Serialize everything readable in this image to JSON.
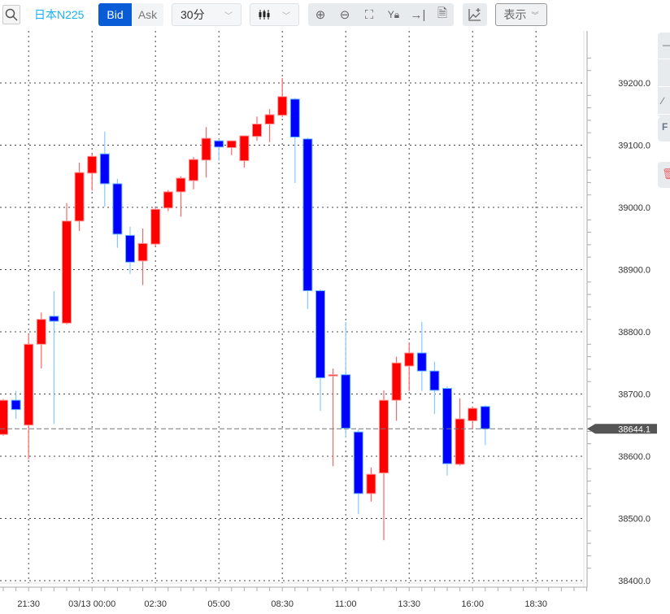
{
  "toolbar": {
    "search_icon": "search-icon",
    "symbol": "日本N225",
    "bid_label": "Bid",
    "ask_label": "Ask",
    "interval": "30分",
    "chart_type_icon": "candlestick-icon",
    "tools": [
      "zoom-in-icon",
      "zoom-out-icon",
      "fit-icon",
      "y-lock-icon",
      "scroll-to-end-icon",
      "document-icon"
    ],
    "indicator_icon": "add-indicator-icon",
    "display_label": "表示",
    "accent": "#0a5bd6",
    "symbol_color": "#1ab0f0"
  },
  "side_panel": {
    "f_label": "F",
    "trash_icon": "trash-icon"
  },
  "chart_data": {
    "type": "candlestick",
    "up_color": "#ff0000",
    "down_color": "#0000ff",
    "ylim": [
      38400,
      39250
    ],
    "y_ticks": [
      "39200.0",
      "39100.0",
      "39000.0",
      "38900.0",
      "38800.0",
      "38700.0",
      "38600.0",
      "38500.0",
      "38400.0"
    ],
    "x_ticks": [
      {
        "i": 2,
        "label": "21:30"
      },
      {
        "i": 7,
        "label": "03/13 00:00"
      },
      {
        "i": 12,
        "label": "02:30"
      },
      {
        "i": 17,
        "label": "05:00"
      },
      {
        "i": 22,
        "label": "08:30"
      },
      {
        "i": 27,
        "label": "11:00"
      },
      {
        "i": 32,
        "label": "13:30"
      },
      {
        "i": 37,
        "label": "16:00"
      },
      {
        "i": 42,
        "label": "18:30"
      }
    ],
    "grid": true,
    "current_price": "38644.1",
    "candles": [
      [
        38635,
        38692,
        38633,
        38690
      ],
      [
        38690,
        38705,
        38660,
        38675
      ],
      [
        38650,
        38796,
        38595,
        38780
      ],
      [
        38780,
        38831,
        38741,
        38820
      ],
      [
        38825,
        38865,
        38652,
        38817
      ],
      [
        38814,
        39007,
        38812,
        38978
      ],
      [
        38978,
        39072,
        38962,
        39056
      ],
      [
        39055,
        39085,
        39027,
        39082
      ],
      [
        39086,
        39122,
        39001,
        39038
      ],
      [
        39038,
        39046,
        38935,
        38957
      ],
      [
        38955,
        38969,
        38893,
        38912
      ],
      [
        38914,
        38966,
        38875,
        38942
      ],
      [
        38941,
        39000,
        38937,
        38997
      ],
      [
        38999,
        39028,
        38994,
        39025
      ],
      [
        39025,
        39050,
        38985,
        39047
      ],
      [
        39043,
        39081,
        39029,
        39077
      ],
      [
        39076,
        39129,
        39048,
        39111
      ],
      [
        39107,
        39110,
        39075,
        39097
      ],
      [
        39096,
        39107,
        39084,
        39107
      ],
      [
        39075,
        39115,
        39064,
        39115
      ],
      [
        39114,
        39146,
        39107,
        39134
      ],
      [
        39134,
        39158,
        39105,
        39149
      ],
      [
        39148,
        39208,
        39145,
        39178
      ],
      [
        39174,
        39176,
        39039,
        39113
      ],
      [
        39110,
        39112,
        38837,
        38866
      ],
      [
        38866,
        38868,
        38673,
        38726
      ],
      [
        38731,
        38741,
        38584,
        38731
      ],
      [
        38731,
        38816,
        38630,
        38645
      ],
      [
        38639,
        38643,
        38507,
        38540
      ],
      [
        38540,
        38582,
        38527,
        38571
      ],
      [
        38573,
        38706,
        38465,
        38690
      ],
      [
        38690,
        38760,
        38657,
        38750
      ],
      [
        38745,
        38783,
        38705,
        38766
      ],
      [
        38766,
        38816,
        38705,
        38737
      ],
      [
        38737,
        38752,
        38668,
        38706
      ],
      [
        38709,
        38712,
        38569,
        38588
      ],
      [
        38587,
        38693,
        38585,
        38660
      ],
      [
        38657,
        38680,
        38644,
        38677
      ],
      [
        38680,
        38682,
        38618,
        38644.1
      ]
    ]
  }
}
